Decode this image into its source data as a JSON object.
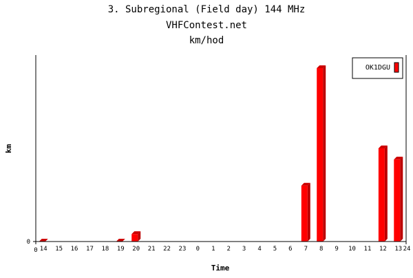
{
  "chart_data": {
    "type": "bar",
    "title": "3. Subregional (Field day) 144 MHz",
    "subtitle": "VHFContest.net",
    "subtitle2": "km/hod",
    "xlabel": "Time",
    "ylabel": "km",
    "x_axis_start_label": "0",
    "x_axis_end_label": "24",
    "y_tick_labels": [
      "0"
    ],
    "ylim": [
      0,
      100
    ],
    "categories": [
      "14",
      "15",
      "16",
      "17",
      "18",
      "19",
      "20",
      "21",
      "22",
      "23",
      "0",
      "1",
      "2",
      "3",
      "4",
      "5",
      "6",
      "7",
      "8",
      "9",
      "10",
      "11",
      "12",
      "13"
    ],
    "series": [
      {
        "name": "OK1DGU",
        "color": "#ff0000",
        "values": [
          0,
          null,
          null,
          null,
          null,
          0,
          4,
          null,
          null,
          null,
          null,
          null,
          null,
          null,
          null,
          null,
          null,
          30,
          93,
          null,
          null,
          null,
          50,
          44
        ]
      }
    ],
    "legend_position": "top-right",
    "grid": false
  }
}
